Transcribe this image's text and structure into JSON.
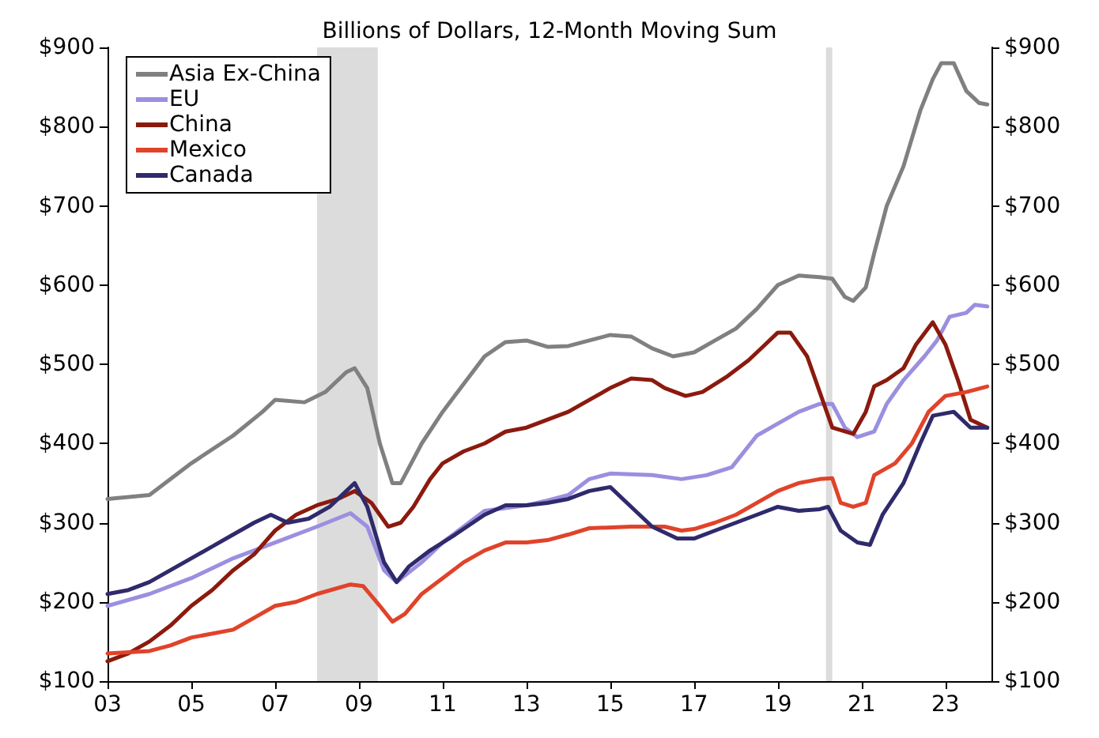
{
  "chart_data": {
    "type": "line",
    "title": "Billions of Dollars, 12-Month Moving Sum",
    "xlim": [
      2003,
      2024.1
    ],
    "xticks": [
      {
        "value": 2003,
        "label": "03"
      },
      {
        "value": 2005,
        "label": "05"
      },
      {
        "value": 2007,
        "label": "07"
      },
      {
        "value": 2009,
        "label": "09"
      },
      {
        "value": 2011,
        "label": "11"
      },
      {
        "value": 2013,
        "label": "13"
      },
      {
        "value": 2015,
        "label": "15"
      },
      {
        "value": 2017,
        "label": "17"
      },
      {
        "value": 2019,
        "label": "19"
      },
      {
        "value": 2021,
        "label": "21"
      },
      {
        "value": 2023,
        "label": "23"
      }
    ],
    "ylim": [
      100,
      900
    ],
    "yticks": [
      {
        "value": 100,
        "label": "$100"
      },
      {
        "value": 200,
        "label": "$200"
      },
      {
        "value": 300,
        "label": "$300"
      },
      {
        "value": 400,
        "label": "$400"
      },
      {
        "value": 500,
        "label": "$500"
      },
      {
        "value": 600,
        "label": "$600"
      },
      {
        "value": 700,
        "label": "$700"
      },
      {
        "value": 800,
        "label": "$800"
      },
      {
        "value": 900,
        "label": "$900"
      }
    ],
    "y2lim": [
      100,
      900
    ],
    "y2ticks": [
      {
        "value": 100,
        "label": "$100"
      },
      {
        "value": 200,
        "label": "$200"
      },
      {
        "value": 300,
        "label": "$300"
      },
      {
        "value": 400,
        "label": "$400"
      },
      {
        "value": 500,
        "label": "$500"
      },
      {
        "value": 600,
        "label": "$600"
      },
      {
        "value": 700,
        "label": "$700"
      },
      {
        "value": 800,
        "label": "$800"
      },
      {
        "value": 900,
        "label": "$900"
      }
    ],
    "grid": false,
    "legend": "top left",
    "marker": "none",
    "line_style": "solid",
    "bands": [
      {
        "axis": "x",
        "from": 2008.0,
        "to": 2009.45,
        "color": "#dcdcdc"
      },
      {
        "axis": "x",
        "from": 2020.15,
        "to": 2020.3,
        "color": "#dcdcdc"
      }
    ],
    "series": [
      {
        "name": "Asia Ex-China",
        "color": "#808080",
        "x": [
          2003,
          2004,
          2005,
          2006,
          2006.7,
          2007,
          2007.7,
          2008.2,
          2008.7,
          2008.9,
          2009.2,
          2009.5,
          2009.8,
          2010,
          2010.5,
          2011,
          2011.5,
          2012,
          2012.5,
          2013,
          2013.5,
          2014,
          2014.5,
          2015,
          2015.5,
          2016,
          2016.5,
          2017,
          2017.5,
          2018,
          2018.5,
          2019,
          2019.5,
          2020,
          2020.3,
          2020.6,
          2020.8,
          2021.1,
          2021.3,
          2021.6,
          2022,
          2022.4,
          2022.7,
          2022.9,
          2023.2,
          2023.5,
          2023.8,
          2024
        ],
        "values": [
          330,
          335,
          375,
          410,
          440,
          455,
          452,
          465,
          490,
          495,
          470,
          400,
          350,
          350,
          400,
          440,
          475,
          510,
          528,
          530,
          522,
          523,
          530,
          537,
          535,
          520,
          510,
          515,
          530,
          545,
          570,
          600,
          612,
          610,
          608,
          585,
          580,
          597,
          640,
          700,
          750,
          820,
          860,
          880,
          880,
          845,
          830,
          828
        ]
      },
      {
        "name": "EU",
        "color": "#9b8fe0",
        "x": [
          2003,
          2004,
          2005,
          2006,
          2007,
          2008,
          2008.8,
          2009.2,
          2009.6,
          2009.9,
          2010.5,
          2011,
          2011.5,
          2012,
          2013,
          2013.5,
          2014,
          2014.5,
          2015,
          2016,
          2016.7,
          2017.3,
          2017.9,
          2018.5,
          2019,
          2019.5,
          2020,
          2020.3,
          2020.6,
          2020.9,
          2021.3,
          2021.6,
          2022,
          2022.5,
          2022.8,
          2023.1,
          2023.5,
          2023.7,
          2024
        ],
        "values": [
          195,
          210,
          230,
          255,
          275,
          295,
          312,
          295,
          240,
          225,
          250,
          275,
          295,
          315,
          322,
          328,
          335,
          355,
          362,
          360,
          355,
          360,
          370,
          410,
          425,
          440,
          450,
          450,
          420,
          408,
          415,
          450,
          480,
          510,
          530,
          560,
          565,
          575,
          573
        ]
      },
      {
        "name": "China",
        "color": "#8b1a0e",
        "x": [
          2003,
          2003.5,
          2004,
          2004.5,
          2005,
          2005.5,
          2006,
          2006.5,
          2007,
          2007.5,
          2008,
          2008.5,
          2008.9,
          2009.3,
          2009.7,
          2010,
          2010.3,
          2010.7,
          2011,
          2011.5,
          2012,
          2012.5,
          2013,
          2013.5,
          2014,
          2014.5,
          2015,
          2015.5,
          2016,
          2016.3,
          2016.8,
          2017.2,
          2017.8,
          2018.3,
          2018.6,
          2019,
          2019.3,
          2019.7,
          2020,
          2020.3,
          2020.8,
          2021.1,
          2021.3,
          2021.6,
          2022,
          2022.3,
          2022.7,
          2023,
          2023.3,
          2023.6,
          2024
        ],
        "values": [
          125,
          135,
          150,
          170,
          195,
          215,
          240,
          260,
          290,
          310,
          322,
          330,
          340,
          325,
          295,
          300,
          320,
          355,
          375,
          390,
          400,
          415,
          420,
          430,
          440,
          455,
          470,
          482,
          480,
          470,
          460,
          465,
          485,
          505,
          520,
          540,
          540,
          510,
          465,
          420,
          412,
          440,
          472,
          480,
          495,
          525,
          553,
          525,
          480,
          430,
          420
        ]
      },
      {
        "name": "Mexico",
        "color": "#e0432a",
        "x": [
          2003,
          2004,
          2004.5,
          2005,
          2006,
          2006.5,
          2007,
          2007.5,
          2008,
          2008.8,
          2009.1,
          2009.5,
          2009.8,
          2010.1,
          2010.5,
          2011,
          2011.5,
          2012,
          2012.5,
          2013,
          2013.5,
          2014,
          2014.5,
          2015.5,
          2016.3,
          2016.7,
          2017,
          2017.5,
          2018,
          2018.5,
          2019,
          2019.5,
          2020,
          2020.3,
          2020.5,
          2020.8,
          2021.1,
          2021.3,
          2021.8,
          2022.2,
          2022.6,
          2023,
          2023.5,
          2024
        ],
        "values": [
          135,
          138,
          145,
          155,
          165,
          180,
          195,
          200,
          210,
          222,
          220,
          195,
          175,
          185,
          210,
          230,
          250,
          265,
          275,
          275,
          278,
          285,
          293,
          295,
          295,
          290,
          292,
          300,
          310,
          325,
          340,
          350,
          355,
          356,
          325,
          320,
          325,
          360,
          375,
          400,
          440,
          460,
          465,
          472
        ]
      },
      {
        "name": "Canada",
        "color": "#2e2a6b",
        "x": [
          2003,
          2003.5,
          2004,
          2004.5,
          2005,
          2005.5,
          2006,
          2006.5,
          2006.9,
          2007.3,
          2007.8,
          2008.3,
          2008.9,
          2009.2,
          2009.6,
          2009.9,
          2010.2,
          2010.7,
          2011.3,
          2012,
          2012.5,
          2013,
          2013.5,
          2014,
          2014.5,
          2015,
          2015.5,
          2016,
          2016.6,
          2017,
          2017.5,
          2018,
          2018.5,
          2019,
          2019.5,
          2020,
          2020.2,
          2020.5,
          2020.9,
          2021.2,
          2021.5,
          2022,
          2022.4,
          2022.7,
          2023,
          2023.2,
          2023.6,
          2024
        ],
        "values": [
          210,
          215,
          225,
          240,
          255,
          270,
          285,
          300,
          310,
          300,
          305,
          320,
          350,
          320,
          250,
          225,
          245,
          265,
          285,
          310,
          322,
          322,
          325,
          330,
          340,
          345,
          320,
          295,
          280,
          280,
          290,
          300,
          310,
          320,
          315,
          317,
          320,
          290,
          275,
          272,
          310,
          350,
          400,
          435,
          438,
          440,
          420,
          420
        ]
      }
    ]
  }
}
